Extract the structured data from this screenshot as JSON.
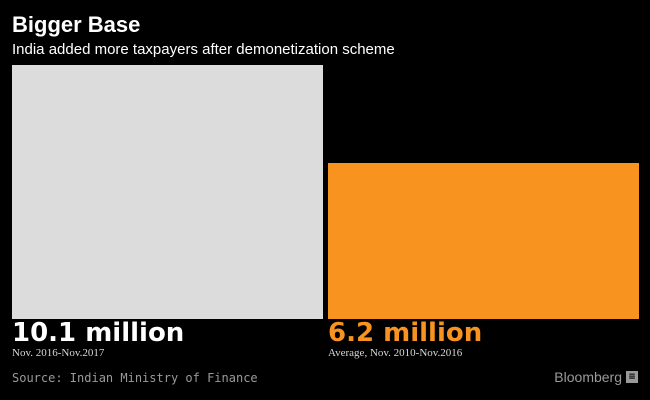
{
  "chart_data": {
    "type": "bar",
    "title": "Bigger Base",
    "subtitle": "India added more taxpayers after demonetization scheme",
    "xlabel": "",
    "ylabel": "",
    "ylim": [
      0,
      10.1
    ],
    "grid": false,
    "legend": "none",
    "categories": [
      "Nov. 2016-Nov.2017",
      "Average, Nov. 2010-Nov.2016"
    ],
    "values": [
      10.1,
      6.2
    ],
    "value_labels": [
      "10.1 million",
      "6.2 million"
    ],
    "colors": [
      "#dcdcdc",
      "#f7931e"
    ],
    "label_colors": [
      "#ffffff",
      "#f7931e"
    ],
    "source": "Source: Indian Ministry of Finance",
    "brand": "Bloomberg",
    "brand_icon": "bloomberg-terminal-icon"
  }
}
